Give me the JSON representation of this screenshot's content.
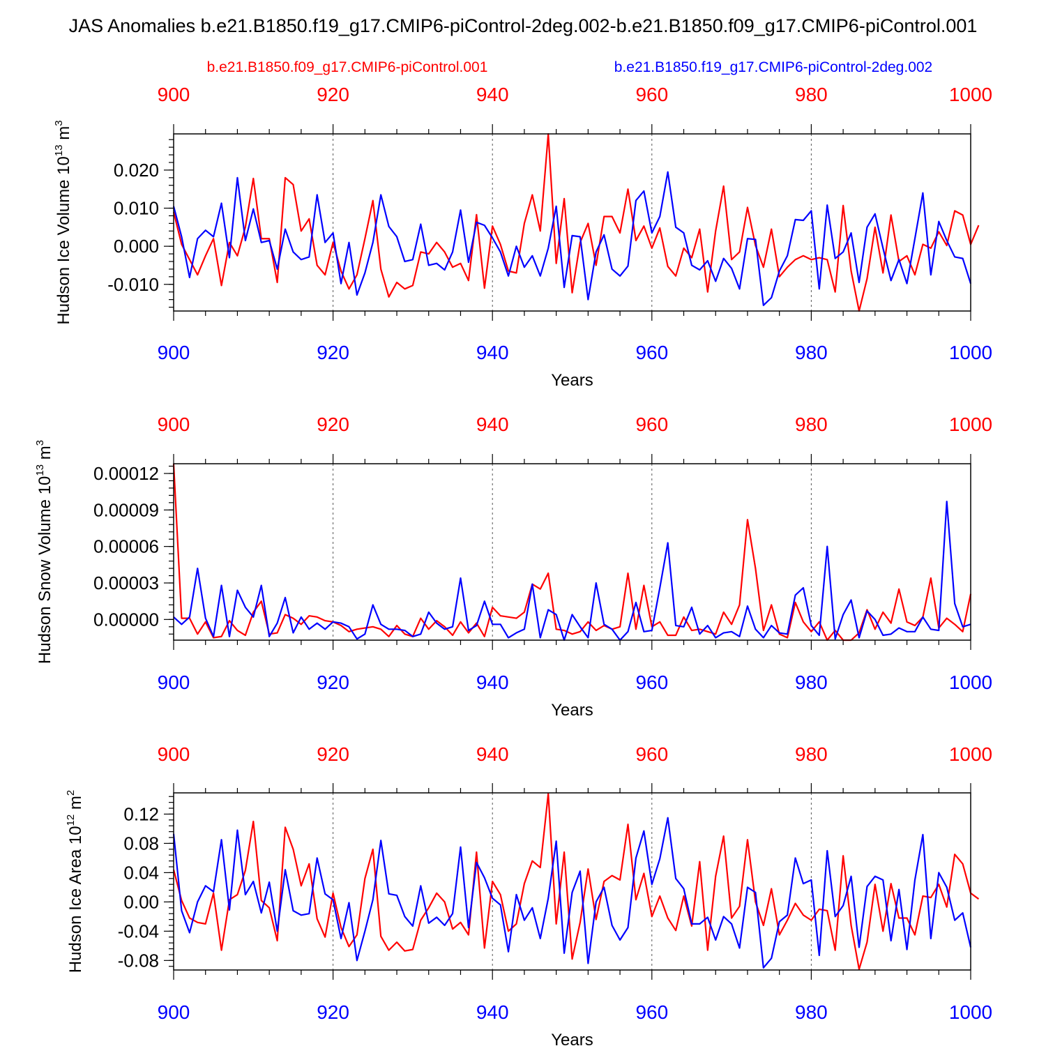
{
  "title": "JAS Anomalies b.e21.B1850.f19_g17.CMIP6-piControl-2deg.002-b.e21.B1850.f09_g17.CMIP6-piControl.001",
  "legend": {
    "red_label": "b.e21.B1850.f09_g17.CMIP6-piControl.001",
    "blue_label": "b.e21.B1850.f19_g17.CMIP6-piControl-2deg.002"
  },
  "colors": {
    "red": "#ff0000",
    "blue": "#0000ff",
    "axis": "#000000"
  },
  "chart_data": [
    {
      "type": "line",
      "name": "ice-volume",
      "ylabel_main": "Hudson Ice Volume 10",
      "ylabel_exp": "13",
      "ylabel_unit": " m",
      "ylabel_unit_exp": "3",
      "xlabel": "Years",
      "xlim": [
        900,
        1000
      ],
      "ylim": [
        -0.017,
        0.0295
      ],
      "yticks": [
        -0.01,
        0.0,
        0.01,
        0.02
      ],
      "ytick_labels": [
        "-0.010",
        "0.000",
        "0.010",
        "0.020"
      ],
      "yminor_step": 0.002,
      "xticks": [
        900,
        920,
        940,
        960,
        980,
        1000
      ],
      "xtick_labels": [
        "900",
        "920",
        "940",
        "960",
        "980",
        "1000"
      ],
      "x_start": 900,
      "series": [
        {
          "name": "b.e21.B1850.f09_g17.CMIP6-piControl.001",
          "color": "#ff0000",
          "values": [
            0.009,
            0.0005,
            -0.0035,
            -0.0075,
            -0.0025,
            0.002,
            -0.0103,
            0.001,
            -0.0025,
            0.005,
            0.0178,
            0.002,
            0.002,
            -0.0095,
            0.018,
            0.0162,
            0.004,
            0.0072,
            -0.005,
            -0.0075,
            0.001,
            -0.0065,
            -0.0112,
            -0.0075,
            0.002,
            0.012,
            -0.006,
            -0.0133,
            -0.0095,
            -0.0112,
            -0.0103,
            -0.0015,
            -0.002,
            0.001,
            -0.0015,
            -0.0055,
            -0.0045,
            -0.009,
            0.0083,
            -0.011,
            0.0053,
            0.0005,
            -0.0065,
            -0.007,
            0.006,
            0.0135,
            0.004,
            0.0295,
            -0.0045,
            0.0125,
            -0.0122,
            0.001,
            0.006,
            -0.005,
            0.0078,
            0.0078,
            0.0035,
            0.015,
            0.0015,
            0.0053,
            -0.0005,
            0.0048,
            -0.0053,
            -0.0078,
            -0.0005,
            -0.003,
            0.0045,
            -0.012,
            0.004,
            0.0158,
            -0.0035,
            -0.0015,
            0.0102,
            0.0002,
            -0.0055,
            0.0045,
            -0.008,
            -0.0055,
            -0.0035,
            -0.0025,
            -0.0035,
            -0.003,
            -0.0035,
            -0.012,
            0.0107,
            -0.0065,
            -0.017,
            -0.0085,
            0.005,
            -0.007,
            0.0082,
            -0.004,
            -0.0025,
            -0.0075,
            0.0005,
            -0.0005,
            0.0038,
            0.0002,
            0.0093,
            0.0082,
            0.0005,
            0.0055
          ]
        },
        {
          "name": "b.e21.B1850.f19_g17.CMIP6-piControl-2deg.002",
          "color": "#0000ff",
          "values": [
            0.0105,
            0.0025,
            -0.0082,
            0.002,
            0.0042,
            0.0025,
            0.0113,
            -0.003,
            0.018,
            0.0015,
            0.0098,
            0.001,
            0.0015,
            -0.006,
            0.0045,
            -0.0015,
            -0.0035,
            -0.0028,
            0.0135,
            0.001,
            0.0035,
            -0.0098,
            0.001,
            -0.0128,
            -0.007,
            0.001,
            0.0135,
            0.0052,
            0.0025,
            -0.004,
            -0.0035,
            0.0058,
            -0.005,
            -0.0045,
            -0.0062,
            -0.0015,
            0.0095,
            -0.0042,
            0.0063,
            0.0055,
            0.0022,
            -0.0015,
            -0.0078,
            0.0,
            -0.0055,
            -0.0025,
            -0.0078,
            -0.0005,
            0.0105,
            -0.0108,
            0.0028,
            0.0025,
            -0.014,
            -0.0015,
            0.003,
            -0.006,
            -0.0078,
            -0.0052,
            0.012,
            0.0145,
            0.0035,
            0.0078,
            0.0195,
            0.005,
            0.0035,
            -0.005,
            -0.0062,
            -0.0038,
            -0.0092,
            -0.0032,
            -0.0058,
            -0.0112,
            0.002,
            0.0018,
            -0.0155,
            -0.0135,
            -0.0065,
            -0.0025,
            0.007,
            0.0068,
            0.0093,
            -0.0112,
            0.0108,
            -0.0032,
            -0.0015,
            0.0035,
            -0.0095,
            0.005,
            0.0085,
            -0.0005,
            -0.009,
            -0.0035,
            -0.0098,
            0.002,
            0.014,
            -0.0075,
            0.0065,
            0.0015,
            -0.0028,
            -0.0032,
            -0.0098
          ]
        }
      ]
    },
    {
      "type": "line",
      "name": "snow-volume",
      "ylabel_main": "Hudson Snow Volume 10",
      "ylabel_exp": "13",
      "ylabel_unit": " m",
      "ylabel_unit_exp": "3",
      "xlabel": "Years",
      "xlim": [
        900,
        1000
      ],
      "ylim": [
        -1.7e-05,
        0.000128
      ],
      "yticks": [
        0.0,
        3e-05,
        6e-05,
        9e-05,
        0.00012
      ],
      "ytick_labels": [
        "0.00000",
        "0.00003",
        "0.00006",
        "0.00009",
        "0.00012"
      ],
      "yminor_step": 6e-06,
      "xticks": [
        900,
        920,
        940,
        960,
        980,
        1000
      ],
      "xtick_labels": [
        "900",
        "920",
        "940",
        "960",
        "980",
        "1000"
      ],
      "x_start": 900,
      "series": [
        {
          "name": "b.e21.B1850.f09_g17.CMIP6-piControl.001",
          "color": "#ff0000",
          "values": [
            0.000128,
            1e-06,
            1e-06,
            -1.2e-05,
            -2e-06,
            -1.5e-05,
            -1.4e-05,
            -1e-06,
            -9e-06,
            -1.3e-05,
            6e-06,
            1.5e-05,
            -1.2e-05,
            -1.1e-05,
            4e-06,
            1e-06,
            -4e-06,
            3e-06,
            2e-06,
            -1e-06,
            -2e-06,
            -5e-06,
            -1e-05,
            -8e-06,
            -7e-06,
            -6e-06,
            -8e-06,
            -1.4e-05,
            -5e-06,
            -1.2e-05,
            -1.4e-05,
            1e-06,
            -8e-06,
            -1e-06,
            -6e-06,
            -1.3e-05,
            -2e-06,
            -1.1e-05,
            -3e-06,
            -1.4e-05,
            1e-05,
            3e-06,
            2e-06,
            1e-06,
            6e-06,
            2.9e-05,
            2.5e-05,
            3.8e-05,
            -8e-06,
            -9e-06,
            -1.2e-05,
            -1e-05,
            -2e-06,
            -9e-06,
            -5e-06,
            -8e-06,
            -6e-06,
            3.8e-05,
            -8e-06,
            2.8e-05,
            -6e-06,
            -2e-06,
            -1.3e-05,
            -1.3e-05,
            2e-06,
            -9e-06,
            -8e-06,
            -1e-05,
            -1.2e-05,
            6e-06,
            -4e-06,
            1.2e-05,
            8.2e-05,
            4.2e-05,
            -9e-06,
            1.2e-05,
            -1.2e-05,
            -1.5e-05,
            1.4e-05,
            -2e-06,
            -1e-05,
            -2e-06,
            -1.7e-05,
            -9e-06,
            -1.7e-05,
            -1.7e-05,
            -1.1e-05,
            8e-06,
            -8e-06,
            6e-06,
            -3e-06,
            2.5e-05,
            -2e-06,
            -5e-06,
            2e-06,
            3.4e-05,
            -7e-06,
            1e-06,
            -4e-06,
            -1e-05,
            2.1e-05
          ]
        },
        {
          "name": "b.e21.B1850.f19_g17.CMIP6-piControl-2deg.002",
          "color": "#0000ff",
          "values": [
            2e-06,
            -4e-06,
            2e-06,
            4.2e-05,
            1e-06,
            -1.4e-05,
            2.8e-05,
            -1.4e-05,
            2.4e-05,
            1e-05,
            2e-06,
            2.8e-05,
            -1.4e-05,
            -3e-06,
            1.8e-05,
            -1.1e-05,
            2e-06,
            -8e-06,
            -3e-06,
            -8e-06,
            -2e-06,
            -3e-06,
            -6e-06,
            -1.6e-05,
            -1.2e-05,
            1.2e-05,
            -4e-06,
            -8e-06,
            -8e-06,
            -9e-06,
            -1.4e-05,
            -1.2e-05,
            6e-06,
            -3e-06,
            -8e-06,
            -6e-06,
            3.4e-05,
            -9e-06,
            -5e-06,
            1.5e-05,
            -4e-06,
            -4e-06,
            -1.5e-05,
            -1.1e-05,
            -8e-06,
            2.9e-05,
            -1.5e-05,
            8e-06,
            4e-06,
            -1.7e-05,
            4e-06,
            -6e-06,
            -1.5e-05,
            3e-05,
            -4e-06,
            -8e-06,
            -1.7e-05,
            -1e-05,
            1.4e-05,
            -1e-05,
            -9e-06,
            2.6e-05,
            6.3e-05,
            -5e-06,
            -6e-06,
            1e-05,
            -1.2e-05,
            -5e-06,
            -1.5e-05,
            -1.1e-05,
            -1e-05,
            -1.4e-05,
            1.1e-05,
            -8e-06,
            -1.5e-05,
            -5e-06,
            -1.1e-05,
            -1.2e-05,
            2e-05,
            2.6e-05,
            -5e-06,
            -1.3e-05,
            6e-05,
            -1.6e-05,
            4e-06,
            1.6e-05,
            -1.5e-05,
            7e-06,
            0.0,
            -1.3e-05,
            -1.2e-05,
            -7e-06,
            -1e-05,
            -1e-05,
            2e-06,
            -8e-06,
            -9e-06,
            9.7e-05,
            1.3e-05,
            -6e-06,
            -4e-06
          ]
        }
      ]
    },
    {
      "type": "line",
      "name": "ice-area",
      "ylabel_main": "Hudson Ice Area 10",
      "ylabel_exp": "12",
      "ylabel_unit": " m",
      "ylabel_unit_exp": "2",
      "xlabel": "Years",
      "xlim": [
        900,
        1000
      ],
      "ylim": [
        -0.093,
        0.149
      ],
      "yticks": [
        -0.08,
        -0.04,
        0.0,
        0.04,
        0.08,
        0.12
      ],
      "ytick_labels": [
        "-0.08",
        "-0.04",
        "0.00",
        "0.04",
        "0.08",
        "0.12"
      ],
      "yminor_step": 0.008,
      "xticks": [
        900,
        920,
        940,
        960,
        980,
        1000
      ],
      "xtick_labels": [
        "900",
        "920",
        "940",
        "960",
        "980",
        "1000"
      ],
      "x_start": 900,
      "series": [
        {
          "name": "b.e21.B1850.f09_g17.CMIP6-piControl.001",
          "color": "#ff0000",
          "values": [
            0.044,
            0.002,
            -0.022,
            -0.028,
            -0.03,
            0.012,
            -0.066,
            0.003,
            0.01,
            0.043,
            0.11,
            0.002,
            -0.008,
            -0.053,
            0.102,
            0.072,
            0.022,
            0.052,
            -0.023,
            -0.048,
            0.012,
            -0.035,
            -0.061,
            -0.045,
            0.032,
            0.072,
            -0.047,
            -0.066,
            -0.055,
            -0.067,
            -0.065,
            -0.025,
            -0.008,
            0.012,
            0.0,
            -0.037,
            -0.028,
            -0.045,
            0.068,
            -0.063,
            0.028,
            0.01,
            -0.04,
            -0.03,
            0.025,
            0.056,
            0.047,
            0.148,
            -0.03,
            0.068,
            -0.078,
            -0.028,
            0.045,
            -0.024,
            0.028,
            0.036,
            0.03,
            0.106,
            0.003,
            0.039,
            -0.02,
            0.008,
            -0.022,
            -0.039,
            0.008,
            -0.033,
            0.055,
            -0.066,
            0.035,
            0.09,
            -0.022,
            -0.006,
            0.085,
            0.0,
            -0.032,
            0.018,
            -0.045,
            -0.025,
            -0.002,
            -0.018,
            -0.025,
            -0.01,
            -0.012,
            -0.066,
            0.063,
            -0.032,
            -0.092,
            -0.055,
            0.024,
            -0.04,
            0.025,
            -0.022,
            -0.022,
            -0.045,
            0.008,
            0.006,
            0.024,
            -0.007,
            0.065,
            0.052,
            0.012,
            0.004
          ]
        },
        {
          "name": "b.e21.B1850.f19_g17.CMIP6-piControl-2deg.002",
          "color": "#0000ff",
          "values": [
            0.093,
            -0.012,
            -0.042,
            0.0,
            0.022,
            0.014,
            0.085,
            -0.011,
            0.098,
            0.01,
            0.028,
            -0.015,
            0.027,
            -0.04,
            0.044,
            -0.012,
            -0.018,
            -0.016,
            0.06,
            0.011,
            0.003,
            -0.05,
            -0.001,
            -0.08,
            -0.04,
            0.003,
            0.084,
            0.011,
            0.009,
            -0.02,
            -0.033,
            0.022,
            -0.029,
            -0.021,
            -0.032,
            -0.016,
            0.075,
            -0.035,
            0.054,
            0.033,
            0.005,
            -0.004,
            -0.068,
            0.01,
            -0.025,
            -0.008,
            -0.05,
            0.005,
            0.083,
            -0.07,
            0.013,
            0.042,
            -0.084,
            0.0,
            0.02,
            -0.032,
            -0.052,
            -0.035,
            0.06,
            0.097,
            0.024,
            0.059,
            0.115,
            0.032,
            0.018,
            -0.03,
            -0.03,
            -0.021,
            -0.052,
            -0.02,
            -0.03,
            -0.063,
            0.02,
            0.013,
            -0.09,
            -0.077,
            -0.027,
            -0.018,
            0.06,
            0.025,
            0.03,
            -0.073,
            0.07,
            -0.02,
            -0.005,
            0.035,
            -0.062,
            0.021,
            0.035,
            0.03,
            -0.053,
            0.017,
            -0.065,
            0.03,
            0.092,
            -0.05,
            0.04,
            0.02,
            -0.025,
            -0.015,
            -0.062
          ]
        }
      ]
    }
  ]
}
